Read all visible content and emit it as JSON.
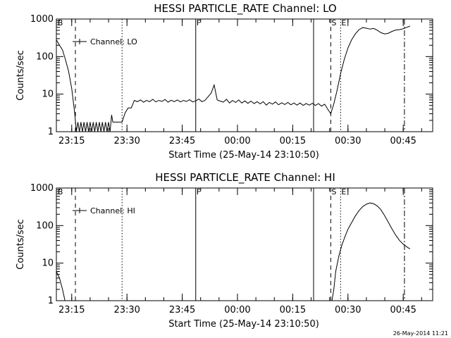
{
  "chart_data": [
    {
      "type": "line",
      "title": "HESSI PARTICLE_RATE Channel: LO",
      "xlabel": "Start Time (25-May-14 23:10:50)",
      "ylabel": "Counts/sec",
      "yscale": "log",
      "ylim": [
        1,
        1000
      ],
      "xlim": [
        "23:10:50",
        "00:53:00"
      ],
      "x_tick_labels": [
        "23:15",
        "23:30",
        "23:45",
        "00:00",
        "00:15",
        "00:30",
        "00:45"
      ],
      "y_tick_labels": [
        "1",
        "10",
        "100",
        "1000"
      ],
      "legend": {
        "label": "Channel: LO",
        "placement": "top-left"
      },
      "markers": [
        {
          "label": "B",
          "time": "23:11:00",
          "style": "none"
        },
        {
          "label": "",
          "time": "23:16:00",
          "style": "dashed"
        },
        {
          "label": "",
          "time": "23:28:40",
          "style": "dotted"
        },
        {
          "label": "F",
          "time": "23:48:40",
          "style": "solid"
        },
        {
          "label": "",
          "time": "00:20:40",
          "style": "solid"
        },
        {
          "label": "S",
          "time": "00:25:20",
          "style": "dashed"
        },
        {
          "label": "E",
          "time": "00:28:00",
          "style": "dotted"
        },
        {
          "label": "",
          "time": "00:45:20",
          "style": "dashdot"
        }
      ],
      "series": [
        {
          "points": [
            [
              "23:10:50",
              280
            ],
            [
              "23:11:40",
              200
            ],
            [
              "23:12:30",
              150
            ],
            [
              "23:13:20",
              80
            ],
            [
              "23:14:10",
              40
            ],
            [
              "23:15:00",
              14
            ],
            [
              "23:15:50",
              3
            ],
            [
              "23:16:15",
              1
            ],
            [
              "23:16:40",
              1.8
            ],
            [
              "23:17:05",
              1
            ],
            [
              "23:17:30",
              1.8
            ],
            [
              "23:17:55",
              1
            ],
            [
              "23:18:20",
              1.8
            ],
            [
              "23:18:45",
              1
            ],
            [
              "23:19:10",
              1.8
            ],
            [
              "23:19:35",
              1
            ],
            [
              "23:20:00",
              1.8
            ],
            [
              "23:20:25",
              1
            ],
            [
              "23:20:50",
              1.8
            ],
            [
              "23:21:15",
              1
            ],
            [
              "23:21:40",
              1.8
            ],
            [
              "23:22:05",
              1
            ],
            [
              "23:22:30",
              1.8
            ],
            [
              "23:22:55",
              1
            ],
            [
              "23:23:20",
              1.8
            ],
            [
              "23:23:45",
              1
            ],
            [
              "23:24:10",
              1.8
            ],
            [
              "23:24:35",
              1
            ],
            [
              "23:25:00",
              1.8
            ],
            [
              "23:25:25",
              1
            ],
            [
              "23:25:50",
              2.8
            ],
            [
              "23:26:10",
              1.8
            ],
            [
              "23:28:40",
              1.8
            ],
            [
              "23:29:30",
              3.2
            ],
            [
              "23:30:20",
              4.3
            ],
            [
              "23:31:10",
              4.3
            ],
            [
              "23:32:00",
              6.8
            ],
            [
              "23:32:50",
              6.3
            ],
            [
              "23:33:40",
              7.0
            ],
            [
              "23:34:30",
              6.1
            ],
            [
              "23:35:20",
              6.8
            ],
            [
              "23:36:10",
              6.3
            ],
            [
              "23:37:00",
              7.3
            ],
            [
              "23:37:50",
              6.2
            ],
            [
              "23:38:40",
              6.8
            ],
            [
              "23:39:30",
              6.4
            ],
            [
              "23:40:20",
              7.2
            ],
            [
              "23:41:10",
              6.1
            ],
            [
              "23:42:00",
              6.9
            ],
            [
              "23:42:50",
              6.3
            ],
            [
              "23:43:40",
              7.0
            ],
            [
              "23:44:30",
              6.2
            ],
            [
              "23:45:20",
              6.8
            ],
            [
              "23:46:10",
              6.4
            ],
            [
              "23:47:00",
              7.1
            ],
            [
              "23:47:50",
              6.2
            ],
            [
              "23:48:40",
              6.6
            ],
            [
              "23:49:30",
              7.4
            ],
            [
              "23:50:20",
              6.3
            ],
            [
              "23:51:10",
              6.8
            ],
            [
              "23:52:00",
              8.5
            ],
            [
              "23:52:50",
              10.5
            ],
            [
              "23:53:40",
              17.5
            ],
            [
              "23:54:30",
              7.0
            ],
            [
              "23:55:20",
              6.5
            ],
            [
              "23:56:10",
              6.1
            ],
            [
              "23:57:00",
              7.3
            ],
            [
              "23:57:50",
              5.8
            ],
            [
              "23:58:40",
              6.8
            ],
            [
              "23:59:30",
              6.0
            ],
            [
              "00:00:20",
              7.0
            ],
            [
              "00:01:10",
              5.8
            ],
            [
              "00:02:00",
              6.6
            ],
            [
              "00:02:50",
              5.7
            ],
            [
              "00:03:40",
              6.5
            ],
            [
              "00:04:30",
              5.6
            ],
            [
              "00:05:20",
              6.3
            ],
            [
              "00:06:10",
              5.5
            ],
            [
              "00:07:00",
              6.3
            ],
            [
              "00:07:50",
              5.1
            ],
            [
              "00:08:40",
              6.0
            ],
            [
              "00:09:30",
              5.4
            ],
            [
              "00:10:20",
              6.2
            ],
            [
              "00:11:10",
              5.2
            ],
            [
              "00:12:00",
              5.9
            ],
            [
              "00:12:50",
              5.3
            ],
            [
              "00:13:40",
              6.0
            ],
            [
              "00:14:30",
              5.2
            ],
            [
              "00:15:20",
              5.8
            ],
            [
              "00:16:10",
              5.1
            ],
            [
              "00:17:00",
              5.8
            ],
            [
              "00:17:50",
              5.0
            ],
            [
              "00:18:40",
              5.6
            ],
            [
              "00:19:30",
              5.1
            ],
            [
              "00:20:20",
              5.7
            ],
            [
              "00:21:10",
              5.0
            ],
            [
              "00:22:00",
              5.6
            ],
            [
              "00:22:50",
              4.8
            ],
            [
              "00:23:40",
              5.4
            ],
            [
              "00:24:30",
              4.0
            ],
            [
              "00:25:20",
              3.0
            ],
            [
              "00:26:10",
              5.5
            ],
            [
              "00:27:00",
              12
            ],
            [
              "00:28:00",
              35
            ],
            [
              "00:29:00",
              85
            ],
            [
              "00:30:00",
              170
            ],
            [
              "00:31:00",
              280
            ],
            [
              "00:32:00",
              400
            ],
            [
              "00:33:00",
              520
            ],
            [
              "00:34:00",
              590
            ],
            [
              "00:35:00",
              570
            ],
            [
              "00:36:00",
              540
            ],
            [
              "00:37:00",
              560
            ],
            [
              "00:38:00",
              500
            ],
            [
              "00:39:00",
              430
            ],
            [
              "00:40:00",
              400
            ],
            [
              "00:41:00",
              420
            ],
            [
              "00:42:00",
              470
            ],
            [
              "00:43:00",
              510
            ],
            [
              "00:44:00",
              520
            ],
            [
              "00:45:00",
              550
            ],
            [
              "00:46:00",
              600
            ],
            [
              "00:46:50",
              650
            ]
          ]
        }
      ]
    },
    {
      "type": "line",
      "title": "HESSI PARTICLE_RATE Channel: HI",
      "xlabel": "Start Time (25-May-14 23:10:50)",
      "ylabel": "Counts/sec",
      "yscale": "log",
      "ylim": [
        1,
        1000
      ],
      "xlim": [
        "23:10:50",
        "00:53:00"
      ],
      "x_tick_labels": [
        "23:15",
        "23:30",
        "23:45",
        "00:00",
        "00:15",
        "00:30",
        "00:45"
      ],
      "y_tick_labels": [
        "1",
        "10",
        "100",
        "1000"
      ],
      "legend": {
        "label": "Channel: HI",
        "placement": "top-left"
      },
      "markers": [
        {
          "label": "B",
          "time": "23:11:00",
          "style": "none"
        },
        {
          "label": "",
          "time": "23:16:00",
          "style": "dashed"
        },
        {
          "label": "",
          "time": "23:28:40",
          "style": "dotted"
        },
        {
          "label": "F",
          "time": "23:48:40",
          "style": "solid"
        },
        {
          "label": "",
          "time": "00:20:40",
          "style": "solid"
        },
        {
          "label": "S",
          "time": "00:25:20",
          "style": "dashed"
        },
        {
          "label": "E",
          "time": "00:28:00",
          "style": "dotted"
        },
        {
          "label": "",
          "time": "00:45:20",
          "style": "dashdot"
        }
      ],
      "series": [
        {
          "points": [
            [
              "23:10:50",
              6
            ],
            [
              "23:11:40",
              4
            ],
            [
              "23:12:30",
              2
            ],
            [
              "23:13:10",
              1
            ]
          ]
        },
        {
          "points": [
            [
              "00:25:40",
              1
            ],
            [
              "00:26:10",
              2
            ],
            [
              "00:26:40",
              6
            ],
            [
              "00:27:30",
              15
            ],
            [
              "00:28:20",
              30
            ],
            [
              "00:29:10",
              50
            ],
            [
              "00:30:00",
              80
            ],
            [
              "00:31:00",
              120
            ],
            [
              "00:32:00",
              180
            ],
            [
              "00:33:00",
              250
            ],
            [
              "00:34:00",
              320
            ],
            [
              "00:35:00",
              370
            ],
            [
              "00:36:00",
              400
            ],
            [
              "00:37:00",
              380
            ],
            [
              "00:38:00",
              330
            ],
            [
              "00:39:00",
              260
            ],
            [
              "00:40:00",
              180
            ],
            [
              "00:41:00",
              120
            ],
            [
              "00:42:00",
              80
            ],
            [
              "00:43:00",
              55
            ],
            [
              "00:44:00",
              40
            ],
            [
              "00:45:00",
              32
            ],
            [
              "00:46:00",
              27
            ],
            [
              "00:46:50",
              24
            ]
          ]
        }
      ]
    }
  ],
  "timestamp": "26-May-2014 11:21"
}
